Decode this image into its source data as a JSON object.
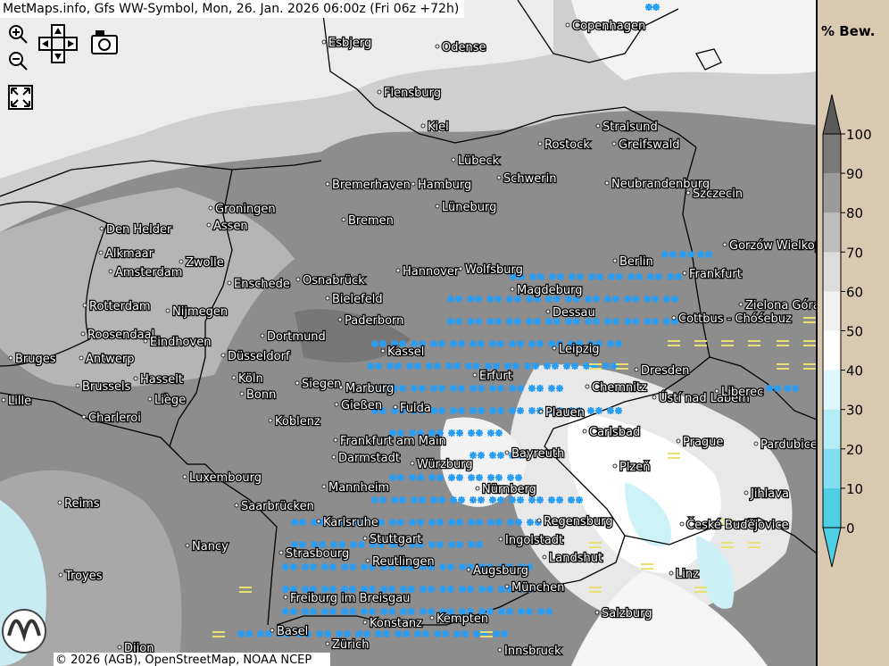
{
  "header": {
    "title": "MetMaps.info, Gfs WW-Symbol, Mon, 26. Jan. 2026 06:00z (Fri 06z +72h)"
  },
  "legend": {
    "title": "% Bew.",
    "ticks": [
      0,
      10,
      20,
      30,
      40,
      50,
      60,
      70,
      80,
      90,
      100
    ],
    "colors": [
      "#4fcfe6",
      "#82def0",
      "#b3ecf6",
      "#dcf7fb",
      "#ffffff",
      "#f1f1f1",
      "#dcdcdc",
      "#bdbdbd",
      "#9b9b9b",
      "#7b7b7b",
      "#5a5a5a"
    ]
  },
  "cities": [
    "Copenhagen",
    "Esbjerg",
    "Odense",
    "Flensburg",
    "Kiel",
    "Stralsund",
    "Rostock",
    "Greifswald",
    "Lübeck",
    "Schwerin",
    "Bremerhaven",
    "Hamburg",
    "Neubrandenburg",
    "Szczecin",
    "Groningen",
    "Assen",
    "Lüneburg",
    "Bremen",
    "Den Helder",
    "Gorzów Wielkopolski",
    "Alkmaar",
    "Zwolle",
    "Berlin",
    "Amsterdam",
    "Hannover",
    "Wolfsburg",
    "Frankfurt",
    "Enschede",
    "Osnabrück",
    "Magdeburg",
    "Bielefeld",
    "Zielona Góra",
    "Rotterdam",
    "Nijmegen",
    "Dessau",
    "Cottbus - Chóśebuz",
    "Paderborn",
    "Roosendaal",
    "Eindhoven",
    "Dortmund",
    "Kassel",
    "Leipzig",
    "Bruges",
    "Antwerp",
    "Düsseldorf",
    "Dresden",
    "Hasselt",
    "Köln",
    "Erfurt",
    "Siegen",
    "Marburg",
    "Brussels",
    "Chemnitz",
    "Ústí nad Labem",
    "Liberec",
    "Liège",
    "Bonn",
    "Lille",
    "Gießen",
    "Fulda",
    "Plauen",
    "Charleroi",
    "Koblenz",
    "Carlsbad",
    "Prague",
    "Pardubice",
    "Frankfurt am Main",
    "Bayreuth",
    "Darmstadt",
    "Würzburg",
    "Plzeň",
    "Luxembourg",
    "Mannheim",
    "Nürnberg",
    "Jihlava",
    "Reims",
    "Saarbrücken",
    "Karlsruhe",
    "Regensburg",
    "České Budějovice",
    "Stuttgart",
    "Ingolstadt",
    "Nancy",
    "Strasbourg",
    "Landshut",
    "Reutlingen",
    "Augsburg",
    "Troyes",
    "Linz",
    "München",
    "Freiburg im Breisgau",
    "Salzburg",
    "Kempten",
    "Konstanz",
    "Basel",
    "Zürich",
    "Innsbruck",
    "Dijon"
  ],
  "footer": {
    "copyright": "© 2026 (AGB), OpenStreetMap, NOAA NCEP"
  }
}
